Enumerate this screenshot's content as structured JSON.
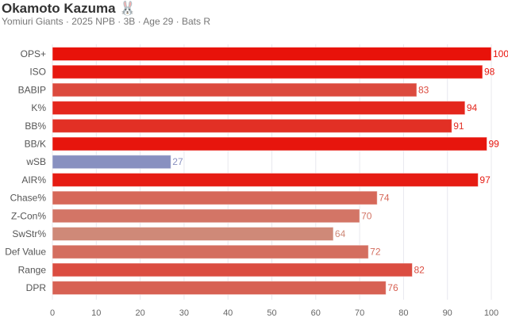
{
  "header": {
    "title": "Okamoto Kazuma",
    "emoji": "🐰",
    "subtitle": "Yomiuri Giants · 2025 NPB · 3B · Age 29 · Bats R"
  },
  "chart_data": {
    "type": "bar",
    "orientation": "horizontal",
    "categories": [
      "OPS+",
      "ISO",
      "BABIP",
      "K%",
      "BB%",
      "BB/K",
      "wSB",
      "AIR%",
      "Chase%",
      "Z-Con%",
      "SwStr%",
      "Def Value",
      "Range",
      "DPR"
    ],
    "values": [
      100,
      98,
      83,
      94,
      91,
      99,
      27,
      97,
      74,
      70,
      64,
      72,
      82,
      76
    ],
    "xlim": [
      0,
      100
    ],
    "xticks": [
      0,
      10,
      20,
      30,
      40,
      50,
      60,
      70,
      80,
      90,
      100
    ],
    "grid": true,
    "xlabel": "",
    "ylabel": "",
    "colors": {
      "high": "#e8120a",
      "mid": "#d4826a",
      "low": "#8890c0"
    }
  }
}
